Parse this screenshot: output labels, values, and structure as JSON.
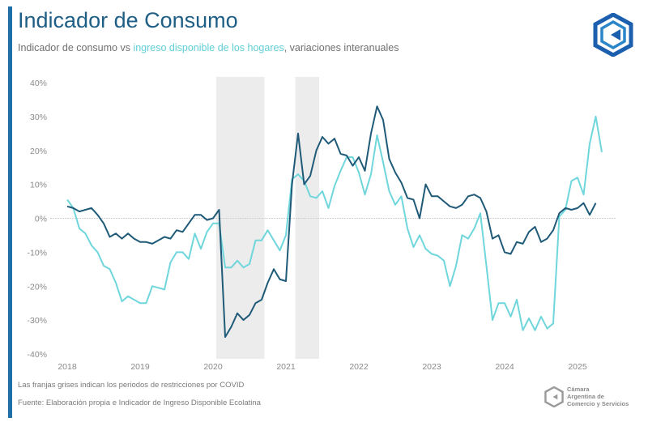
{
  "header": {
    "title": "Indicador de Consumo",
    "subtitle_part1": "Indicador de consumo vs ",
    "subtitle_highlight": "ingreso disponible de los hogares",
    "subtitle_part2": ", variaciones interanuales"
  },
  "footer": {
    "note": "Las franjas grises indican los periodos de restricciones por COVID",
    "source": "Fuente: Elaboración propia e Indicador de Ingreso Disponible Ecolatina",
    "org_line1": "Cámara",
    "org_line2": "Argentina de",
    "org_line3": "Comercio y Servicios"
  },
  "colors": {
    "accent": "#1f6fa8",
    "consumo": "#1f5a78",
    "ingreso": "#6fd6dc",
    "band": "#ececec"
  },
  "chart_data": {
    "type": "line",
    "title": "Indicador de Consumo",
    "subtitle": "Indicador de consumo vs ingreso disponible de los hogares, variaciones interanuales",
    "xlabel": "",
    "ylabel": "",
    "ylim": [
      -40,
      40
    ],
    "y_ticks": [
      "40%",
      "30%",
      "20%",
      "10%",
      "0%",
      "-10%",
      "-20%",
      "-30%",
      "-40%"
    ],
    "y_tick_values": [
      40,
      30,
      20,
      10,
      0,
      -10,
      -20,
      -30,
      -40
    ],
    "x_ticks": [
      "2018",
      "2019",
      "2020",
      "2021",
      "2022",
      "2023",
      "2024",
      "2025"
    ],
    "x_start": "2018-01",
    "frequency": "monthly",
    "grid": false,
    "zero_line": true,
    "shaded_periods": [
      {
        "label": "COVID",
        "start_month_index": 25,
        "end_month_index": 32
      },
      {
        "label": "COVID",
        "start_month_index": 38,
        "end_month_index": 41
      }
    ],
    "series": [
      {
        "name": "Indicador de consumo",
        "values": [
          3.5,
          3,
          2,
          2.5,
          3,
          1,
          -1.5,
          -5.5,
          -4.5,
          -6,
          -4.5,
          -6,
          -7,
          -7,
          -7.5,
          -6.5,
          -5.5,
          -6,
          -3.5,
          -4,
          -1.5,
          1,
          1,
          -0.5,
          0,
          2.5,
          -35,
          -32,
          -28,
          -30,
          -28.5,
          -25,
          -24,
          -19,
          -15,
          -18,
          -18.5,
          10,
          25,
          10,
          12.5,
          20,
          24,
          22,
          23.5,
          19,
          18.5,
          15.5,
          18,
          14,
          25,
          33,
          29,
          17.5,
          13.5,
          10.5,
          6,
          5.5,
          0,
          10,
          6.5,
          6.5,
          5,
          3.5,
          3,
          4,
          6.5,
          7,
          6,
          2,
          -6,
          -5,
          -10,
          -10.5,
          -7,
          -7.5,
          -4,
          -2.5,
          -7,
          -6,
          -3.5,
          1.5,
          3,
          2.5,
          3,
          4.5,
          1,
          4.5
        ]
      },
      {
        "name": "Ingreso disponible de los hogares",
        "values": [
          5.5,
          3,
          -3,
          -4.5,
          -8,
          -10,
          -14,
          -15,
          -19,
          -24.5,
          -23,
          -24,
          -25,
          -25,
          -20,
          -20.5,
          -21,
          -13,
          -10,
          -10,
          -12,
          -4.5,
          -9,
          -4,
          -1.5,
          -1.5,
          -14.5,
          -14.5,
          -12.5,
          -14.5,
          -13.5,
          -6.5,
          -6.5,
          -3.5,
          -6.5,
          -9.5,
          -5,
          11.5,
          13,
          11,
          6.5,
          6,
          8,
          3,
          9.5,
          14,
          18,
          18,
          13.5,
          7,
          13,
          24.5,
          16.5,
          8,
          4,
          6.5,
          -3,
          -8.5,
          -5,
          -9,
          -10.5,
          -11,
          -12.5,
          -20,
          -14,
          -5,
          -6,
          -3,
          1.5,
          -14,
          -30,
          -25,
          -25,
          -29,
          -24,
          -33,
          -29.5,
          -33,
          -29,
          -32.5,
          -31,
          0.5,
          2.5,
          11,
          12,
          7,
          22,
          30,
          19.5
        ]
      }
    ]
  }
}
